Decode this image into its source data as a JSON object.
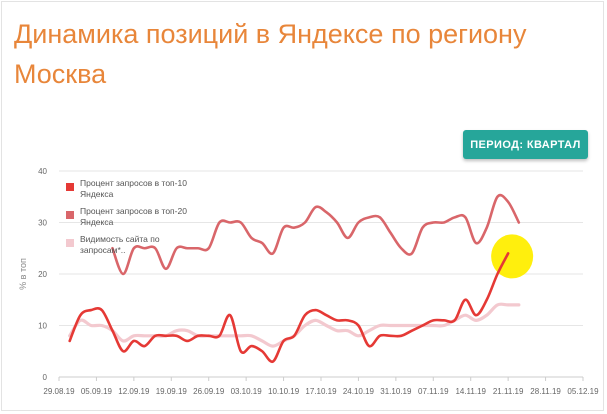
{
  "header": {
    "title": "Динамика позиций в Яндексе по региону Москва"
  },
  "period_button": {
    "label": "ПЕРИОД: КВАРТАЛ",
    "color": "#26a69a"
  },
  "highlight_color": "#ffee00",
  "chart_data": {
    "type": "line",
    "ylabel": "% в топ",
    "xlabel": "",
    "ylim": [
      0,
      40
    ],
    "yticks": [
      0,
      10,
      20,
      30,
      40
    ],
    "x_tick_labels": [
      "29.08.19",
      "05.09.19",
      "12.09.19",
      "19.09.19",
      "26.09.19",
      "03.10.19",
      "10.10.19",
      "17.10.19",
      "24.10.19",
      "31.10.19",
      "07.11.19",
      "14.11.19",
      "21.11.19",
      "28.11.19",
      "05.12.19"
    ],
    "x": [
      2,
      4,
      6,
      8,
      10,
      12,
      14,
      16,
      18,
      20,
      22,
      24,
      26,
      28,
      30,
      32,
      34,
      36,
      38,
      40,
      42,
      44,
      46,
      48,
      50,
      52,
      54,
      56,
      58,
      60,
      62,
      64,
      66,
      68,
      70,
      72,
      74,
      76,
      78,
      80,
      82,
      84,
      86,
      88,
      90,
      92
    ],
    "series": [
      {
        "name": "Процент запросов в топ-10 Яндекса",
        "color": "#e53935",
        "values": [
          7,
          12,
          13,
          13,
          9,
          5,
          7,
          6,
          8,
          8,
          8,
          7,
          8,
          8,
          8,
          12,
          5,
          6,
          5,
          3,
          7,
          8,
          12,
          13,
          12,
          11,
          11,
          10,
          6,
          8,
          8,
          8,
          9,
          10,
          11,
          11,
          11,
          15,
          12,
          15,
          20,
          24,
          null,
          null,
          null,
          null
        ]
      },
      {
        "name": "Процент запросов в топ-20 Яндекса",
        "color": "#d9666a",
        "values": [
          null,
          null,
          null,
          null,
          25,
          20,
          25,
          25,
          25,
          21,
          25,
          25,
          25,
          25,
          30,
          30,
          30,
          27,
          26,
          24,
          29,
          29,
          30,
          33,
          32,
          30,
          27,
          30,
          31,
          31,
          28,
          25,
          24,
          29,
          30,
          30,
          31,
          31,
          26,
          29,
          35,
          34,
          30,
          null,
          null,
          null
        ]
      },
      {
        "name": "Видимость сайта по запросам*..",
        "color": "#f3c9cf",
        "values": [
          8,
          11,
          10,
          10,
          9,
          7,
          8,
          8,
          8,
          8,
          9,
          9,
          8,
          8,
          8,
          8,
          8,
          8,
          7,
          6,
          7,
          8,
          10,
          11,
          10,
          9,
          9,
          8,
          9,
          10,
          10,
          10,
          10,
          10,
          10,
          10,
          11,
          12,
          11,
          12,
          14,
          14,
          14,
          null,
          null,
          null
        ]
      }
    ],
    "legend": {
      "position": "top-left",
      "entries": [
        "Процент запросов в топ-10 Яндекса",
        "Процент запросов в топ-20 Яндекса",
        "Видимость сайта по запросам*.."
      ]
    },
    "grid": true
  }
}
